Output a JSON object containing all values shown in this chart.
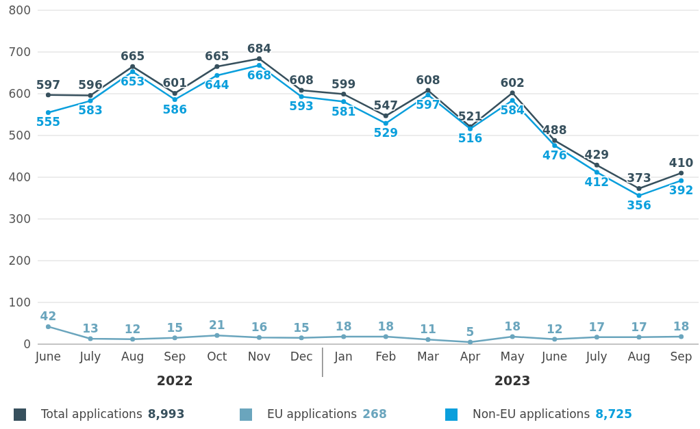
{
  "chart_data": {
    "type": "line",
    "categories": [
      "June",
      "July",
      "Aug",
      "Sep",
      "Oct",
      "Nov",
      "Dec",
      "Jan",
      "Feb",
      "Mar",
      "Apr",
      "May",
      "June",
      "July",
      "Aug",
      "Sep"
    ],
    "series": [
      {
        "name": "Total applications",
        "color": "#37505d",
        "values": [
          597,
          596,
          665,
          601,
          665,
          684,
          608,
          599,
          547,
          608,
          521,
          602,
          488,
          429,
          373,
          410
        ]
      },
      {
        "name": "EU applications",
        "color": "#6aa5bd",
        "values": [
          42,
          13,
          12,
          15,
          21,
          16,
          15,
          18,
          18,
          11,
          5,
          18,
          12,
          17,
          17,
          18
        ]
      },
      {
        "name": "Non-EU applications",
        "color": "#0a9fdc",
        "values": [
          555,
          583,
          653,
          586,
          644,
          668,
          593,
          581,
          529,
          597,
          516,
          584,
          476,
          412,
          356,
          392
        ]
      }
    ],
    "ylim": [
      0,
      800
    ],
    "yticks": [
      0,
      100,
      200,
      300,
      400,
      500,
      600,
      700,
      800
    ],
    "grid": "y",
    "legend": "bottom",
    "marker": "circle",
    "line_style": "solid",
    "data_labels": true,
    "annotations": [
      "2022",
      "2023",
      "8,993",
      "268",
      "8,725"
    ]
  }
}
